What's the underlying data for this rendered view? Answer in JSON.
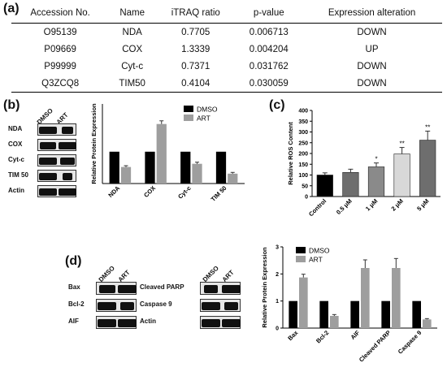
{
  "panels": {
    "a": "(a)",
    "b": "(b)",
    "c": "(c)",
    "d": "(d)"
  },
  "table": {
    "headers": [
      "Accession No.",
      "Name",
      "iTRAQ ratio",
      "p-value",
      "Expression alteration"
    ],
    "rows": [
      [
        "O95139",
        "NDA",
        "0.7705",
        "0.006713",
        "DOWN"
      ],
      [
        "P09669",
        "COX",
        "1.3339",
        "0.004204",
        "UP"
      ],
      [
        "P99999",
        "Cyt-c",
        "0.7371",
        "0.031762",
        "DOWN"
      ],
      [
        "Q3ZCQ8",
        "TIM50",
        "0.4104",
        "0.030059",
        "DOWN"
      ]
    ]
  },
  "blot_b": {
    "lanes": [
      "DMSO",
      "ART"
    ],
    "rows": [
      "NDA",
      "COX",
      "Cyt-c",
      "TIM 50",
      "Actin"
    ]
  },
  "blot_d": {
    "lanes": [
      "DMSO",
      "ART"
    ],
    "left_rows": [
      "Bax",
      "Bcl-2",
      "AIF"
    ],
    "right_rows": [
      "Cleaved PARP",
      "Caspase 9",
      "Actin"
    ]
  },
  "colors": {
    "dmso": "#000000",
    "art": "#9e9e9e",
    "axis": "#000000"
  },
  "chart_data": [
    {
      "id": "b",
      "type": "bar",
      "categories": [
        "NDA",
        "COX",
        "Cyt-c",
        "TIM 50"
      ],
      "series": [
        {
          "name": "DMSO",
          "values": [
            1.0,
            1.0,
            1.0,
            1.0
          ],
          "errors": [
            0,
            0,
            0,
            0
          ]
        },
        {
          "name": "ART",
          "values": [
            0.52,
            1.87,
            0.62,
            0.31
          ],
          "errors": [
            0.04,
            0.1,
            0.05,
            0.04
          ]
        }
      ],
      "ylabel": "Relative Protein Expression",
      "ylim": [
        0,
        2.5
      ],
      "yticks": [],
      "legend": "top-right"
    },
    {
      "id": "c",
      "type": "bar",
      "categories": [
        "Control",
        "0.5 μM",
        "1 μM",
        "2 μM",
        "5 μM"
      ],
      "values": [
        100,
        112,
        138,
        198,
        262
      ],
      "errors": [
        10,
        15,
        18,
        30,
        42
      ],
      "significance": [
        "",
        "",
        "*",
        "**",
        "**"
      ],
      "bar_colors": [
        "#000000",
        "#6e6e6e",
        "#8a8a8a",
        "#d8d8d8",
        "#6e6e6e"
      ],
      "ylabel": "Relative ROS Content",
      "ylim": [
        0,
        400
      ],
      "yticks": [
        0,
        50,
        100,
        150,
        200,
        250,
        300,
        350,
        400
      ]
    },
    {
      "id": "d",
      "type": "bar",
      "categories": [
        "Bax",
        "Bcl-2",
        "AIF",
        "Cleaved PARP",
        "Caspase 9"
      ],
      "series": [
        {
          "name": "DMSO",
          "values": [
            1.0,
            1.0,
            1.0,
            1.0,
            1.0
          ],
          "errors": [
            0,
            0,
            0,
            0,
            0
          ]
        },
        {
          "name": "ART",
          "values": [
            1.87,
            0.45,
            2.22,
            2.22,
            0.32
          ],
          "errors": [
            0.12,
            0.05,
            0.3,
            0.35,
            0.03
          ]
        }
      ],
      "ylabel": "Relative Protein Expression",
      "ylim": [
        0,
        3
      ],
      "yticks": [
        0,
        1,
        2,
        3
      ],
      "legend": "top-left"
    }
  ]
}
